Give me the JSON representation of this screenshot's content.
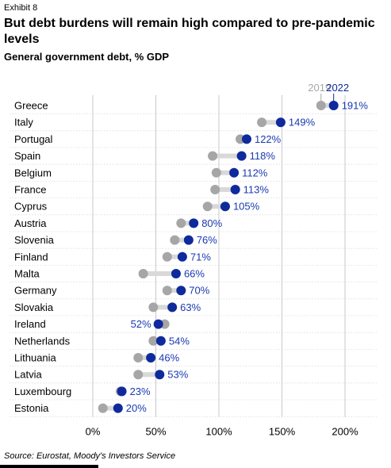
{
  "header": {
    "exhibit": "Exhibit 8",
    "title": "But debt burdens will remain high compared to pre-pandemic levels",
    "subtitle": "General government debt, % GDP"
  },
  "source": "Source: Eurostat, Moody's Investors Service",
  "colors": {
    "y2019": "#a6a6a6",
    "y2022": "#0e2a9c",
    "connector": "#d9d9d9",
    "label": "#1a3ab0"
  },
  "chart_data": {
    "type": "dumbbell",
    "title": "",
    "xlabel": "",
    "ylabel": "",
    "xlim": [
      0,
      225
    ],
    "xticks": [
      "0%",
      "50%",
      "100%",
      "150%",
      "200%"
    ],
    "xtick_values": [
      0,
      50,
      100,
      150,
      200
    ],
    "grid": true,
    "legend": {
      "placement": "top-right",
      "entries": [
        "2019",
        "2022"
      ]
    },
    "categories": [
      "Greece",
      "Italy",
      "Portugal",
      "Spain",
      "Belgium",
      "France",
      "Cyprus",
      "Austria",
      "Slovenia",
      "Finland",
      "Malta",
      "Germany",
      "Slovakia",
      "Ireland",
      "Netherlands",
      "Lithuania",
      "Latvia",
      "Luxembourg",
      "Estonia"
    ],
    "series": [
      {
        "name": "2019",
        "values": [
          181,
          134,
          117,
          95,
          98,
          97,
          91,
          70,
          65,
          59,
          40,
          59,
          48,
          57,
          48,
          36,
          36,
          22,
          8
        ]
      },
      {
        "name": "2022",
        "values": [
          191,
          149,
          122,
          118,
          112,
          113,
          105,
          80,
          76,
          71,
          66,
          70,
          63,
          52,
          54,
          46,
          53,
          23,
          20
        ]
      }
    ],
    "data_labels": [
      "191%",
      "149%",
      "122%",
      "118%",
      "112%",
      "113%",
      "105%",
      "80%",
      "76%",
      "71%",
      "66%",
      "70%",
      "63%",
      "52%",
      "54%",
      "46%",
      "53%",
      "23%",
      "20%"
    ]
  }
}
